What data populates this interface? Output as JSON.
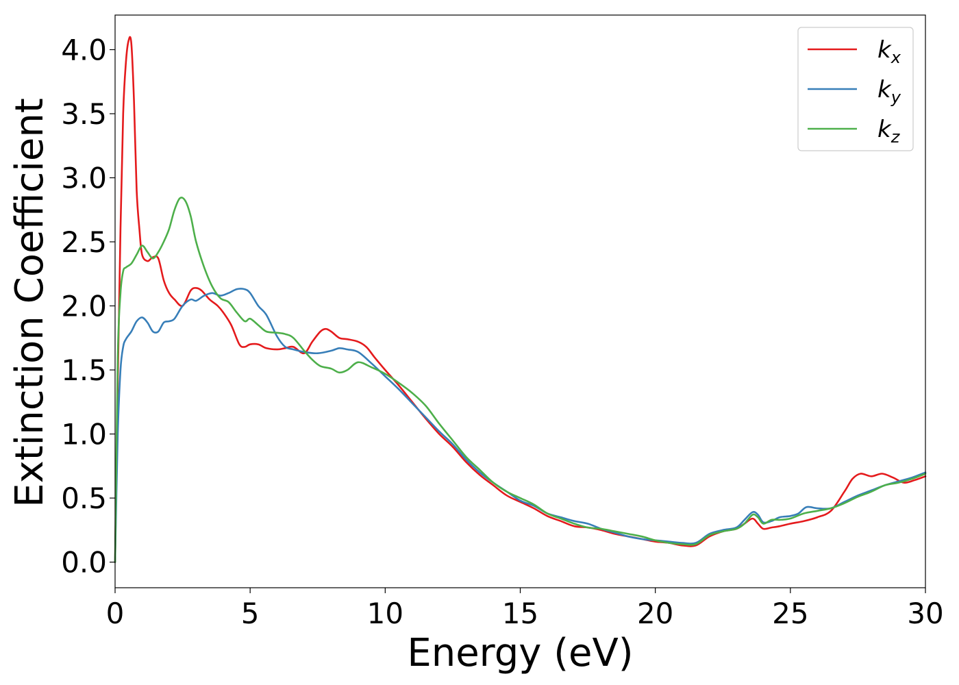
{
  "chart_data": {
    "type": "line",
    "title": "",
    "xlabel": "Energy (eV)",
    "ylabel": "Extinction Coefficient",
    "xlim": [
      0,
      30
    ],
    "ylim": [
      -0.2,
      4.27
    ],
    "xticks": [
      0,
      5,
      10,
      15,
      20,
      25,
      30
    ],
    "xtick_labels": [
      "0",
      "5",
      "10",
      "15",
      "20",
      "25",
      "30"
    ],
    "yticks": [
      0.0,
      0.5,
      1.0,
      1.5,
      2.0,
      2.5,
      3.0,
      3.5,
      4.0
    ],
    "ytick_labels": [
      "0.0",
      "0.5",
      "1.0",
      "1.5",
      "2.0",
      "2.5",
      "3.0",
      "3.5",
      "4.0"
    ],
    "grid": false,
    "legend_position": "top-right",
    "series": [
      {
        "name": "k",
        "subscript": "x",
        "color": "#e41a1c",
        "x": [
          0,
          0.1,
          0.2,
          0.3,
          0.4,
          0.5,
          0.6,
          0.7,
          0.8,
          0.9,
          1.0,
          1.2,
          1.4,
          1.6,
          1.8,
          2.0,
          2.2,
          2.5,
          2.8,
          3.0,
          3.2,
          3.5,
          3.8,
          4.0,
          4.3,
          4.6,
          4.8,
          5.0,
          5.3,
          5.6,
          6.0,
          6.3,
          6.6,
          7.0,
          7.3,
          7.6,
          7.8,
          8.0,
          8.3,
          8.6,
          9.0,
          9.3,
          9.6,
          10,
          10.5,
          11,
          11.5,
          12,
          12.5,
          13,
          13.5,
          14,
          14.5,
          15,
          15.5,
          16,
          16.5,
          17,
          17.5,
          18,
          18.5,
          19,
          19.5,
          20,
          20.5,
          21,
          21.5,
          22,
          22.5,
          23,
          23.3,
          23.6,
          23.8,
          24.0,
          24.3,
          24.6,
          25,
          25.5,
          26,
          26.5,
          27,
          27.3,
          27.6,
          28,
          28.4,
          28.8,
          29.2,
          29.6,
          30
        ],
        "y": [
          0.0,
          1.4,
          2.6,
          3.5,
          3.9,
          4.07,
          4.05,
          3.6,
          2.9,
          2.6,
          2.4,
          2.35,
          2.38,
          2.37,
          2.2,
          2.1,
          2.05,
          2.0,
          2.12,
          2.14,
          2.12,
          2.05,
          2.0,
          1.95,
          1.85,
          1.7,
          1.68,
          1.7,
          1.7,
          1.67,
          1.66,
          1.67,
          1.68,
          1.63,
          1.72,
          1.8,
          1.82,
          1.8,
          1.75,
          1.74,
          1.72,
          1.68,
          1.6,
          1.5,
          1.38,
          1.25,
          1.12,
          1.0,
          0.9,
          0.78,
          0.68,
          0.6,
          0.52,
          0.47,
          0.42,
          0.36,
          0.32,
          0.28,
          0.27,
          0.25,
          0.22,
          0.2,
          0.18,
          0.16,
          0.15,
          0.13,
          0.13,
          0.2,
          0.24,
          0.26,
          0.3,
          0.34,
          0.3,
          0.26,
          0.27,
          0.28,
          0.3,
          0.32,
          0.35,
          0.4,
          0.55,
          0.65,
          0.69,
          0.67,
          0.69,
          0.66,
          0.62,
          0.64,
          0.67
        ]
      },
      {
        "name": "k",
        "subscript": "y",
        "color": "#377eb8",
        "x": [
          0,
          0.1,
          0.2,
          0.3,
          0.4,
          0.6,
          0.8,
          1.0,
          1.2,
          1.4,
          1.6,
          1.8,
          2.0,
          2.2,
          2.5,
          2.8,
          3.0,
          3.3,
          3.6,
          3.9,
          4.2,
          4.5,
          4.8,
          5.0,
          5.3,
          5.6,
          6.0,
          6.3,
          6.6,
          7.0,
          7.5,
          8.0,
          8.3,
          8.6,
          9.0,
          9.5,
          10,
          10.5,
          11,
          11.5,
          12,
          12.5,
          13,
          13.5,
          14,
          14.5,
          15,
          15.5,
          16,
          16.5,
          17,
          17.5,
          18,
          18.5,
          19,
          19.5,
          20,
          20.5,
          21,
          21.5,
          22,
          22.5,
          23,
          23.3,
          23.6,
          23.8,
          24.0,
          24.3,
          24.6,
          25,
          25.3,
          25.6,
          26,
          26.5,
          27,
          27.5,
          28,
          28.5,
          29,
          29.5,
          30
        ],
        "y": [
          0.0,
          1.0,
          1.5,
          1.68,
          1.74,
          1.8,
          1.88,
          1.91,
          1.87,
          1.8,
          1.8,
          1.87,
          1.88,
          1.9,
          2.0,
          2.05,
          2.04,
          2.08,
          2.1,
          2.08,
          2.1,
          2.13,
          2.13,
          2.1,
          2.0,
          1.93,
          1.76,
          1.68,
          1.66,
          1.64,
          1.63,
          1.65,
          1.67,
          1.66,
          1.64,
          1.55,
          1.45,
          1.35,
          1.24,
          1.13,
          1.02,
          0.92,
          0.8,
          0.7,
          0.62,
          0.55,
          0.48,
          0.44,
          0.38,
          0.35,
          0.32,
          0.3,
          0.26,
          0.23,
          0.2,
          0.18,
          0.17,
          0.16,
          0.15,
          0.15,
          0.22,
          0.25,
          0.27,
          0.33,
          0.39,
          0.37,
          0.31,
          0.32,
          0.35,
          0.36,
          0.38,
          0.43,
          0.42,
          0.42,
          0.47,
          0.52,
          0.56,
          0.6,
          0.63,
          0.66,
          0.7
        ]
      },
      {
        "name": "k",
        "subscript": "z",
        "color": "#4daf4a",
        "x": [
          0,
          0.1,
          0.2,
          0.3,
          0.4,
          0.6,
          0.8,
          1.0,
          1.2,
          1.4,
          1.6,
          1.8,
          2.0,
          2.2,
          2.4,
          2.6,
          2.8,
          3.0,
          3.3,
          3.6,
          3.9,
          4.2,
          4.5,
          4.8,
          5.0,
          5.3,
          5.6,
          6.0,
          6.3,
          6.6,
          7.0,
          7.3,
          7.6,
          8.0,
          8.3,
          8.6,
          9.0,
          9.5,
          10,
          10.5,
          11,
          11.5,
          12,
          12.5,
          13,
          13.5,
          14,
          14.5,
          15,
          15.5,
          16,
          16.5,
          17,
          17.5,
          18,
          18.5,
          19,
          19.5,
          20,
          20.5,
          21,
          21.5,
          22,
          22.5,
          23,
          23.3,
          23.6,
          23.8,
          24.0,
          24.3,
          24.6,
          25,
          25.5,
          26,
          26.5,
          27,
          27.5,
          28,
          28.5,
          29,
          29.5,
          30
        ],
        "y": [
          0.0,
          1.6,
          2.1,
          2.27,
          2.3,
          2.33,
          2.4,
          2.47,
          2.42,
          2.37,
          2.42,
          2.5,
          2.6,
          2.75,
          2.84,
          2.82,
          2.7,
          2.5,
          2.3,
          2.15,
          2.06,
          2.03,
          1.95,
          1.88,
          1.9,
          1.85,
          1.8,
          1.79,
          1.78,
          1.75,
          1.65,
          1.58,
          1.53,
          1.51,
          1.48,
          1.5,
          1.56,
          1.52,
          1.47,
          1.4,
          1.32,
          1.22,
          1.08,
          0.95,
          0.82,
          0.72,
          0.62,
          0.55,
          0.5,
          0.45,
          0.38,
          0.34,
          0.3,
          0.27,
          0.26,
          0.24,
          0.22,
          0.2,
          0.17,
          0.15,
          0.14,
          0.14,
          0.21,
          0.24,
          0.26,
          0.3,
          0.37,
          0.35,
          0.3,
          0.33,
          0.33,
          0.34,
          0.38,
          0.4,
          0.42,
          0.46,
          0.51,
          0.55,
          0.6,
          0.62,
          0.65,
          0.69
        ]
      }
    ]
  }
}
